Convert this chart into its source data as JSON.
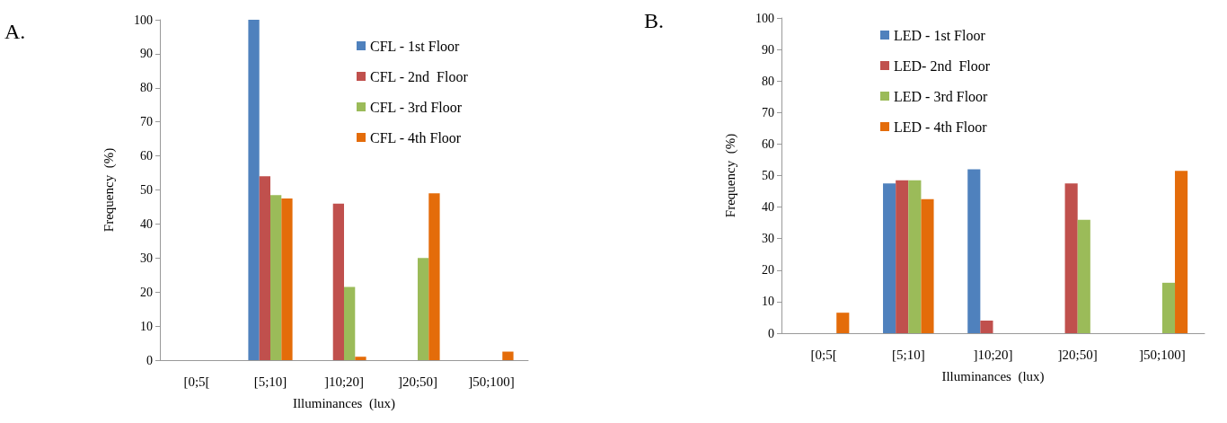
{
  "chart_data": [
    {
      "type": "bar",
      "title": "A.",
      "xlabel": "Illuminances  (lux)",
      "ylabel": "Frequency  (%)",
      "categories": [
        "[0;5[",
        "[5;10]",
        "]10;20]",
        "]20;50]",
        "]50;100]"
      ],
      "series": [
        {
          "name": "CFL - 1st Floor",
          "color": "#4f81bd",
          "values": [
            0,
            100,
            0,
            0,
            0
          ]
        },
        {
          "name": "CFL - 2nd  Floor",
          "color": "#c0504d",
          "values": [
            0,
            54,
            46,
            0,
            0
          ]
        },
        {
          "name": "CFL - 3rd Floor",
          "color": "#9bbb59",
          "values": [
            0,
            48.5,
            21.5,
            30,
            0
          ]
        },
        {
          "name": "CFL - 4th Floor",
          "color": "#e46c0a",
          "values": [
            0,
            47.5,
            1,
            49,
            2.5
          ]
        }
      ],
      "ylim": [
        0,
        100
      ],
      "yticks": [
        0,
        10,
        20,
        30,
        40,
        50,
        60,
        70,
        80,
        90,
        100
      ],
      "grid": false,
      "legend": "top right"
    },
    {
      "type": "bar",
      "title": "B.",
      "xlabel": "Illuminances  (lux)",
      "ylabel": "Frequency  (%)",
      "categories": [
        "[0;5[",
        "[5;10]",
        "]10;20]",
        "]20;50]",
        "]50;100]"
      ],
      "series": [
        {
          "name": "LED - 1st Floor",
          "color": "#4f81bd",
          "values": [
            0,
            47.5,
            52,
            0,
            0
          ]
        },
        {
          "name": "LED- 2nd  Floor",
          "color": "#c0504d",
          "values": [
            0,
            48.5,
            4,
            47.5,
            0
          ]
        },
        {
          "name": "LED - 3rd Floor",
          "color": "#9bbb59",
          "values": [
            0,
            48.5,
            0,
            36,
            16
          ]
        },
        {
          "name": "LED - 4th Floor",
          "color": "#e46c0a",
          "values": [
            6.5,
            42.5,
            0,
            0,
            51.5
          ]
        }
      ],
      "ylim": [
        0,
        100
      ],
      "yticks": [
        0,
        10,
        20,
        30,
        40,
        50,
        60,
        70,
        80,
        90,
        100
      ],
      "grid": false,
      "legend": "top"
    }
  ]
}
